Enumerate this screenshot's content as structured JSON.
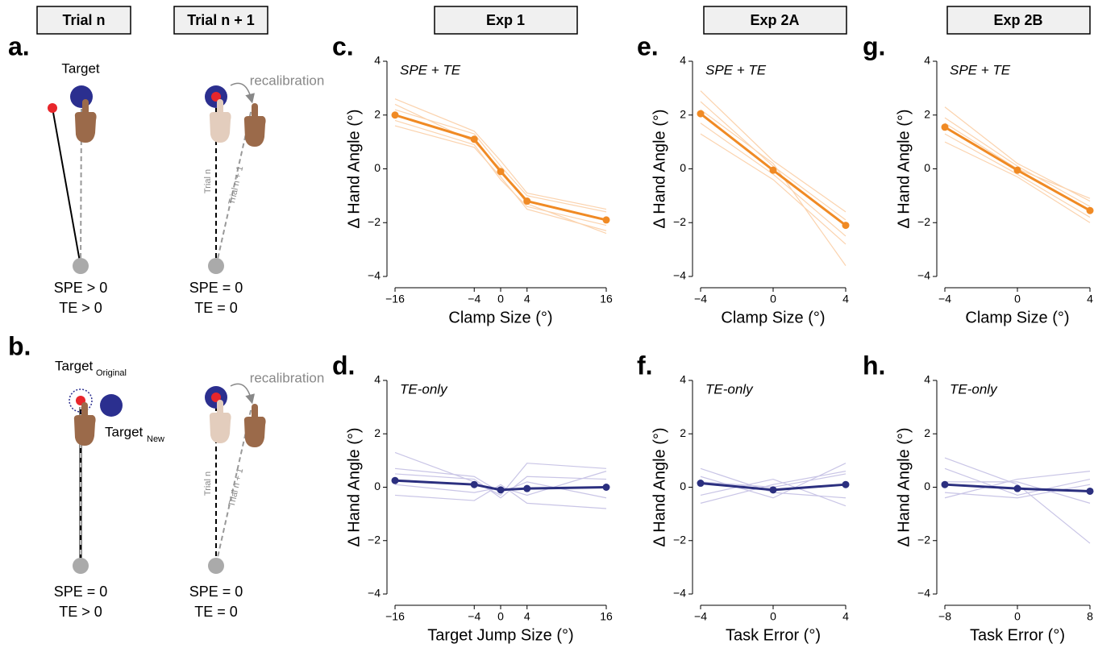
{
  "headers": [
    "Trial n",
    "Trial n + 1",
    "Exp 1",
    "Exp 2A",
    "Exp 2B"
  ],
  "diagram": {
    "a": {
      "label": "a.",
      "target": "Target",
      "recalibration": "recalibration",
      "trial_n": "Trial n",
      "trial_n1": "Trial n + 1",
      "left_conditions": [
        "SPE > 0",
        "TE > 0"
      ],
      "right_conditions": [
        "SPE = 0",
        "TE = 0"
      ]
    },
    "b": {
      "label": "b.",
      "target_original": [
        "Target",
        "Original"
      ],
      "target_new": [
        "Target",
        "New"
      ],
      "recalibration": "recalibration",
      "trial_n": "Trial n",
      "trial_n1": "Trial n + 1",
      "left_conditions": [
        "SPE = 0",
        "TE > 0"
      ],
      "right_conditions": [
        "SPE = 0",
        "TE = 0"
      ]
    }
  },
  "chart_data": [
    {
      "type": "line",
      "panel_label": "c.",
      "annotation": "SPE + TE",
      "xlabel": "Clamp Size (°)",
      "ylabel": "Δ Hand Angle (°)",
      "x": [
        -16,
        -4,
        0,
        4,
        16
      ],
      "xlim": [
        -16,
        16
      ],
      "xticks": [
        {
          "value": -16,
          "label": "−16"
        },
        {
          "value": -4,
          "label": "−4"
        },
        0,
        4,
        16
      ],
      "ylim": [
        -4,
        4
      ],
      "yticks": [
        {
          "value": -4,
          "label": "−4"
        },
        {
          "value": -2,
          "label": "−2"
        },
        0,
        2,
        4
      ],
      "series": [
        {
          "color": "#fbd3ae",
          "values": [
            2.6,
            1.4,
            0.3,
            -0.9,
            -1.5
          ]
        },
        {
          "color": "#fbd3ae",
          "values": [
            1.6,
            0.8,
            -0.3,
            -1.5,
            -2.3
          ]
        },
        {
          "color": "#fbd3ae",
          "values": [
            2.2,
            1.3,
            0.1,
            -1.0,
            -1.6
          ]
        },
        {
          "color": "#fbd3ae",
          "values": [
            1.8,
            0.9,
            -0.4,
            -1.4,
            -2.1
          ]
        },
        {
          "color": "#fbd3ae",
          "values": [
            2.4,
            1.0,
            0.0,
            -1.3,
            -2.4
          ]
        },
        {
          "color": "#f08a24",
          "markers": true,
          "values": [
            2.0,
            1.1,
            -0.1,
            -1.2,
            -1.9
          ]
        }
      ]
    },
    {
      "type": "line",
      "panel_label": "d.",
      "annotation": "TE-only",
      "xlabel": "Target Jump Size (°)",
      "ylabel": "Δ Hand Angle (°)",
      "x": [
        -16,
        -4,
        0,
        4,
        16
      ],
      "xlim": [
        -16,
        16
      ],
      "xticks": [
        {
          "value": -16,
          "label": "−16"
        },
        {
          "value": -4,
          "label": "−4"
        },
        0,
        4,
        16
      ],
      "ylim": [
        -4,
        4
      ],
      "yticks": [
        {
          "value": -4,
          "label": "−4"
        },
        {
          "value": -2,
          "label": "−2"
        },
        0,
        2,
        4
      ],
      "series": [
        {
          "color": "#c9c5e6",
          "values": [
            1.3,
            0.2,
            -0.3,
            0.9,
            0.7
          ]
        },
        {
          "color": "#c9c5e6",
          "values": [
            -0.3,
            -0.5,
            0.1,
            -0.6,
            -0.8
          ]
        },
        {
          "color": "#c9c5e6",
          "values": [
            0.7,
            0.4,
            -0.2,
            0.2,
            -0.4
          ]
        },
        {
          "color": "#c9c5e6",
          "values": [
            0.1,
            -0.2,
            0.0,
            -0.3,
            0.6
          ]
        },
        {
          "color": "#c9c5e6",
          "values": [
            0.5,
            0.3,
            -0.4,
            0.4,
            0.3
          ]
        },
        {
          "color": "#2b2f7f",
          "markers": true,
          "values": [
            0.25,
            0.1,
            -0.1,
            -0.05,
            0.0
          ]
        }
      ]
    },
    {
      "type": "line",
      "panel_label": "e.",
      "annotation": "SPE + TE",
      "xlabel": "Clamp Size (°)",
      "ylabel": "Δ Hand Angle (°)",
      "x": [
        -4,
        0,
        4
      ],
      "xlim": [
        -4,
        4
      ],
      "xticks": [
        {
          "value": -4,
          "label": "−4"
        },
        0,
        4
      ],
      "ylim": [
        -4,
        4
      ],
      "yticks": [
        {
          "value": -4,
          "label": "−4"
        },
        {
          "value": -2,
          "label": "−2"
        },
        0,
        2,
        4
      ],
      "series": [
        {
          "color": "#fbd3ae",
          "values": [
            2.9,
            0.3,
            -1.6
          ]
        },
        {
          "color": "#fbd3ae",
          "values": [
            1.3,
            -0.4,
            -2.8
          ]
        },
        {
          "color": "#fbd3ae",
          "values": [
            2.5,
            0.1,
            -1.9
          ]
        },
        {
          "color": "#fbd3ae",
          "values": [
            1.7,
            -0.2,
            -2.5
          ]
        },
        {
          "color": "#fbd3ae",
          "values": [
            2.2,
            0.2,
            -3.6
          ]
        },
        {
          "color": "#f08a24",
          "markers": true,
          "values": [
            2.05,
            -0.05,
            -2.1
          ]
        }
      ]
    },
    {
      "type": "line",
      "panel_label": "f.",
      "annotation": "TE-only",
      "xlabel": "Task Error (°)",
      "ylabel": "Δ Hand Angle (°)",
      "x": [
        -4,
        0,
        4
      ],
      "xlim": [
        -4,
        4
      ],
      "xticks": [
        {
          "value": -4,
          "label": "−4"
        },
        0,
        4
      ],
      "ylim": [
        -4,
        4
      ],
      "yticks": [
        {
          "value": -4,
          "label": "−4"
        },
        {
          "value": -2,
          "label": "−2"
        },
        0,
        2,
        4
      ],
      "series": [
        {
          "color": "#c9c5e6",
          "values": [
            0.7,
            -0.2,
            -0.4
          ]
        },
        {
          "color": "#c9c5e6",
          "values": [
            -0.6,
            0.1,
            0.6
          ]
        },
        {
          "color": "#c9c5e6",
          "values": [
            0.4,
            -0.4,
            0.9
          ]
        },
        {
          "color": "#c9c5e6",
          "values": [
            -0.3,
            0.3,
            -0.7
          ]
        },
        {
          "color": "#c9c5e6",
          "values": [
            0.2,
            0.0,
            0.5
          ]
        },
        {
          "color": "#2b2f7f",
          "markers": true,
          "values": [
            0.15,
            -0.1,
            0.1
          ]
        }
      ]
    },
    {
      "type": "line",
      "panel_label": "g.",
      "annotation": "SPE + TE",
      "xlabel": "Clamp Size (°)",
      "ylabel": "Δ Hand Angle (°)",
      "x": [
        -4,
        0,
        4
      ],
      "xlim": [
        -4,
        4
      ],
      "xticks": [
        {
          "value": -4,
          "label": "−4"
        },
        0,
        4
      ],
      "ylim": [
        -4,
        4
      ],
      "yticks": [
        {
          "value": -4,
          "label": "−4"
        },
        {
          "value": -2,
          "label": "−2"
        },
        0,
        2,
        4
      ],
      "series": [
        {
          "color": "#fbd3ae",
          "values": [
            2.3,
            0.2,
            -1.2
          ]
        },
        {
          "color": "#fbd3ae",
          "values": [
            1.0,
            -0.3,
            -2.0
          ]
        },
        {
          "color": "#fbd3ae",
          "values": [
            1.9,
            0.1,
            -1.4
          ]
        },
        {
          "color": "#fbd3ae",
          "values": [
            1.3,
            -0.2,
            -1.8
          ]
        },
        {
          "color": "#fbd3ae",
          "values": [
            1.7,
            0.0,
            -1.1
          ]
        },
        {
          "color": "#f08a24",
          "markers": true,
          "values": [
            1.55,
            -0.05,
            -1.55
          ]
        }
      ]
    },
    {
      "type": "line",
      "panel_label": "h.",
      "annotation": "TE-only",
      "xlabel": "Task Error (°)",
      "ylabel": "Δ Hand Angle (°)",
      "x": [
        -8,
        0,
        8
      ],
      "xlim": [
        -8,
        8
      ],
      "xticks": [
        {
          "value": -8,
          "label": "−8"
        },
        0,
        8
      ],
      "ylim": [
        -4,
        4
      ],
      "yticks": [
        {
          "value": -4,
          "label": "−4"
        },
        {
          "value": -2,
          "label": "−2"
        },
        0,
        2,
        4
      ],
      "series": [
        {
          "color": "#c9c5e6",
          "values": [
            1.1,
            0.1,
            -2.1
          ]
        },
        {
          "color": "#c9c5e6",
          "values": [
            -0.4,
            0.3,
            0.6
          ]
        },
        {
          "color": "#c9c5e6",
          "values": [
            0.7,
            -0.3,
            0.3
          ]
        },
        {
          "color": "#c9c5e6",
          "values": [
            0.2,
            0.2,
            -0.6
          ]
        },
        {
          "color": "#c9c5e6",
          "values": [
            -0.2,
            -0.4,
            0.1
          ]
        },
        {
          "color": "#2b2f7f",
          "markers": true,
          "values": [
            0.1,
            -0.05,
            -0.15
          ]
        }
      ]
    }
  ]
}
